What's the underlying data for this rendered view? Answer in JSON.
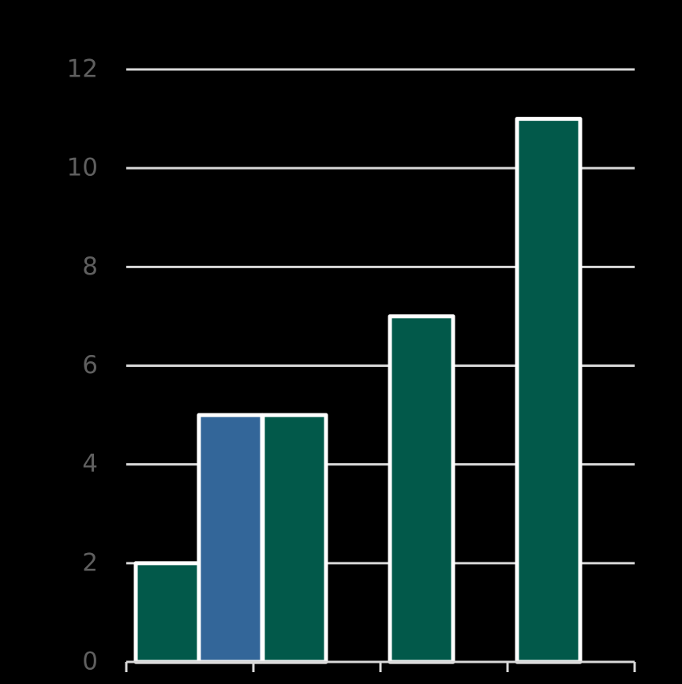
{
  "chart_data": {
    "type": "bar",
    "title": "",
    "xlabel": "",
    "ylabel": "",
    "ylim": [
      0,
      12
    ],
    "yticks": [
      0,
      2,
      4,
      6,
      8,
      10,
      12
    ],
    "ytick_labels": [
      "0",
      "2",
      "4",
      "6",
      "8",
      "10",
      "12"
    ],
    "grid": true,
    "legend": "none",
    "groups": 4,
    "bars": [
      {
        "group": 0,
        "slot": 0,
        "value": 2,
        "color": "#02594a"
      },
      {
        "group": 0,
        "slot": 1,
        "value": 5,
        "color": "#336699"
      },
      {
        "group": 1,
        "slot": 0,
        "value": 5,
        "color": "#02594a"
      },
      {
        "group": 2,
        "slot": 0,
        "value": 7,
        "color": "#02594a"
      },
      {
        "group": 3,
        "slot": 0,
        "value": 11,
        "color": "#02594a"
      }
    ]
  },
  "colors": {
    "background": "#000000",
    "grid": "#d9d9d9",
    "axis": "#d9d9d9",
    "tick_label": "#5f5f5f",
    "bar_outline": "#ffffff"
  }
}
